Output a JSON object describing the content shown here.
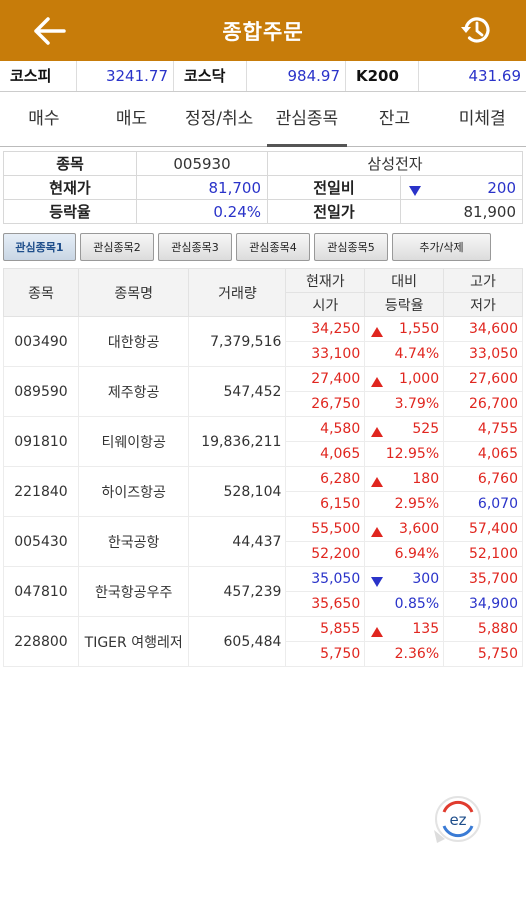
{
  "header": {
    "title": "종합주문"
  },
  "indices": [
    {
      "label": "코스피",
      "value": "3241.77"
    },
    {
      "label": "코스닥",
      "value": "984.97"
    },
    {
      "label": "K200",
      "value": "431.69"
    }
  ],
  "tabs": [
    "매수",
    "매도",
    "정정/취소",
    "관심종목",
    "잔고",
    "미체결"
  ],
  "active_tab": "관심종목",
  "stock_info": {
    "code_label": "종목",
    "code": "005930",
    "name": "삼성전자",
    "price_label": "현재가",
    "price": "81,700",
    "change_label": "전일비",
    "change": "200",
    "rate_label": "등락율",
    "rate": "0.24%",
    "prev_label": "전일가",
    "prev": "81,900"
  },
  "watch_buttons": [
    "관심종목1",
    "관심종목2",
    "관심종목3",
    "관심종목4",
    "관심종목5",
    "추가/삭제"
  ],
  "table": {
    "headers": {
      "code": "종목",
      "name": "종목명",
      "volume": "거래량",
      "price": "현재가",
      "open": "시가",
      "diff": "대비",
      "rate": "등락율",
      "high": "고가",
      "low": "저가"
    },
    "rows": [
      {
        "code": "003490",
        "name": "대한항공",
        "volume": "7,379,516",
        "price": "34,250",
        "open": "33,100",
        "dir": "up",
        "diff": "1,550",
        "rate": "4.74%",
        "high": "34,600",
        "low": "33,050"
      },
      {
        "code": "089590",
        "name": "제주항공",
        "volume": "547,452",
        "price": "27,400",
        "open": "26,750",
        "dir": "up",
        "diff": "1,000",
        "rate": "3.79%",
        "high": "27,600",
        "low": "26,700"
      },
      {
        "code": "091810",
        "name": "티웨이항공",
        "volume": "19,836,211",
        "price": "4,580",
        "open": "4,065",
        "dir": "up",
        "diff": "525",
        "rate": "12.95%",
        "high": "4,755",
        "low": "4,065"
      },
      {
        "code": "221840",
        "name": "하이즈항공",
        "volume": "528,104",
        "price": "6,280",
        "open": "6,150",
        "dir": "up",
        "diff": "180",
        "rate": "2.95%",
        "high": "6,760",
        "low": "6,070"
      },
      {
        "code": "005430",
        "name": "한국공항",
        "volume": "44,437",
        "price": "55,500",
        "open": "52,200",
        "dir": "up",
        "diff": "3,600",
        "rate": "6.94%",
        "high": "57,400",
        "low": "52,100"
      },
      {
        "code": "047810",
        "name": "한국항공우주",
        "volume": "457,239",
        "price": "35,050",
        "open": "35,650",
        "dir": "down",
        "diff": "300",
        "rate": "0.85%",
        "high": "35,700",
        "low": "34,900"
      },
      {
        "code": "228800",
        "name": "TIGER 여행레저",
        "volume": "605,484",
        "price": "5,855",
        "open": "5,750",
        "dir": "up",
        "diff": "135",
        "rate": "2.36%",
        "high": "5,880",
        "low": "5,750"
      }
    ]
  },
  "fab": {
    "label": "ez"
  },
  "colors": {
    "header_bg": "#c77c0a",
    "up": "#e0261f",
    "down": "#2a33c9"
  }
}
